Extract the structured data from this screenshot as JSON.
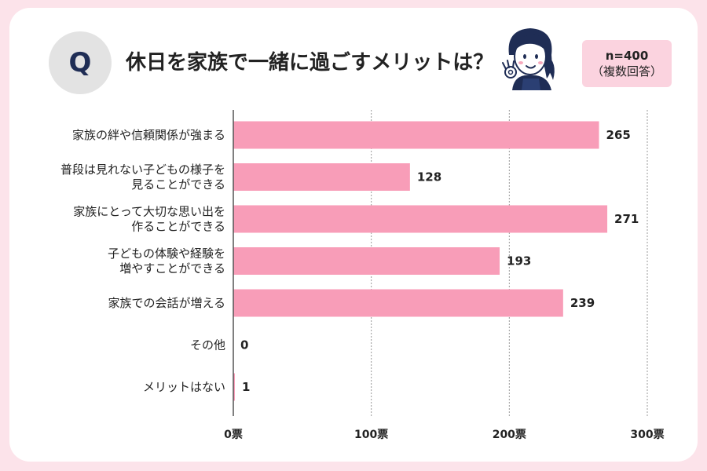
{
  "header": {
    "q_mark": "Q",
    "title": "休日を家族で一緒に過ごすメリットは？",
    "sample": "n=400",
    "note": "（複数回答）"
  },
  "colors": {
    "bar": "#f89db8",
    "accent_bg": "#fce3ea",
    "badge_bg": "#fbd3df",
    "q_circle": "#e3e3e3",
    "q_text": "#1f2d55",
    "grid": "#9a9a9a"
  },
  "chart_data": {
    "type": "bar",
    "orientation": "horizontal",
    "categories": [
      [
        "家族の絆や信頼関係が強まる"
      ],
      [
        "普段は見れない子どもの様子を",
        "見ることができる"
      ],
      [
        "家族にとって大切な思い出を",
        "作ることができる"
      ],
      [
        "子どもの体験や経験を",
        "増やすことができる"
      ],
      [
        "家族での会話が増える"
      ],
      [
        "その他"
      ],
      [
        "メリットはない"
      ]
    ],
    "values": [
      265,
      128,
      271,
      193,
      239,
      0,
      1
    ],
    "xlim": [
      0,
      300
    ],
    "x_ticks": [
      0,
      100,
      200,
      300
    ],
    "x_tick_labels": [
      "0票",
      "100票",
      "200票",
      "300票"
    ],
    "grid": true
  }
}
